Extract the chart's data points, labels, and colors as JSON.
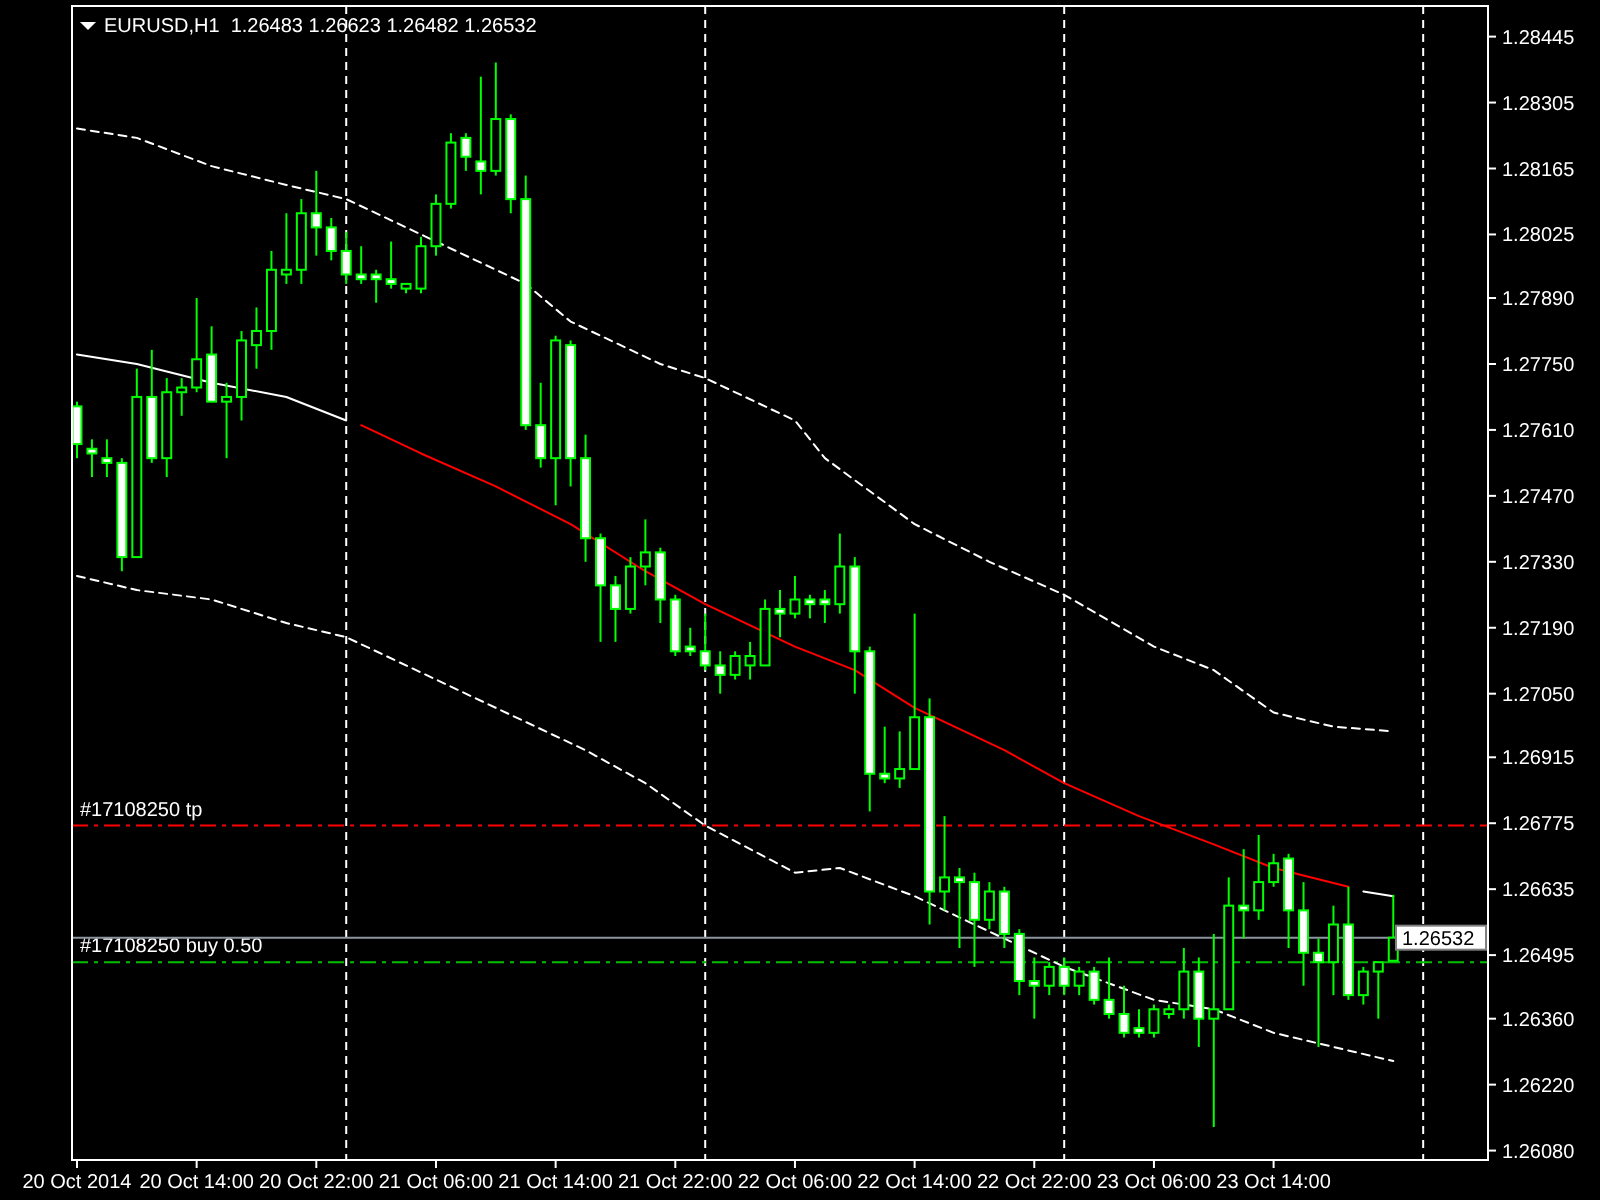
{
  "chart_data": {
    "type": "candlestick",
    "title": "EURUSD,H1  1.26483 1.26623 1.26482 1.26532",
    "xlim": [
      "2014-10-20T05:40",
      "2014-10-24T04:20"
    ],
    "xticks": [
      {
        "value": "2014-10-20T06:00",
        "label": "20 Oct 2014"
      },
      {
        "value": "2014-10-20T14:00",
        "label": "20 Oct 14:00"
      },
      {
        "value": "2014-10-20T22:00",
        "label": "20 Oct 22:00"
      },
      {
        "value": "2014-10-21T06:00",
        "label": "21 Oct 06:00"
      },
      {
        "value": "2014-10-21T14:00",
        "label": "21 Oct 14:00"
      },
      {
        "value": "2014-10-21T22:00",
        "label": "21 Oct 22:00"
      },
      {
        "value": "2014-10-22T06:00",
        "label": "22 Oct 06:00"
      },
      {
        "value": "2014-10-22T14:00",
        "label": "22 Oct 14:00"
      },
      {
        "value": "2014-10-22T22:00",
        "label": "22 Oct 22:00"
      },
      {
        "value": "2014-10-23T06:00",
        "label": "23 Oct 06:00"
      },
      {
        "value": "2014-10-23T14:00",
        "label": "23 Oct 14:00"
      }
    ],
    "ylim": [
      1.2606,
      1.2851
    ],
    "yticks": [
      1.28445,
      1.28305,
      1.28165,
      1.28025,
      {
        "value": 1.2789,
        "label": "1.27890"
      },
      {
        "value": 1.2775,
        "label": "1.27750"
      },
      {
        "value": 1.2761,
        "label": "1.27610"
      },
      {
        "value": 1.2747,
        "label": "1.27470"
      },
      {
        "value": 1.2733,
        "label": "1.27330"
      },
      {
        "value": 1.2719,
        "label": "1.27190"
      },
      {
        "value": 1.2705,
        "label": "1.27050"
      },
      1.26915,
      1.26775,
      1.26635,
      1.26495,
      {
        "value": 1.2636,
        "label": "1.26360"
      },
      {
        "value": 1.2622,
        "label": "1.26220"
      },
      {
        "value": 1.2608,
        "label": "1.26080"
      }
    ],
    "series": [
      {
        "type": "line",
        "color": "#ffffff",
        "line_style": "solid",
        "x": [
          "2014-10-20T06:00",
          "2014-10-20T10:00",
          "2014-10-20T15:00",
          "2014-10-20T20:00",
          "2014-10-21T00:00",
          "2014-10-22T10:00",
          "2014-10-23T20:00",
          "2014-10-23T22:00"
        ],
        "values": [
          1.2777,
          1.2775,
          1.2771,
          1.2768,
          1.2763,
          null,
          1.2663,
          1.2662
        ]
      },
      {
        "type": "line",
        "color": "#ff0000",
        "line_style": "solid",
        "x": [
          "2014-10-21T01:00",
          "2014-10-21T05:00",
          "2014-10-21T10:00",
          "2014-10-21T15:00",
          "2014-10-21T20:00",
          "2014-10-22T00:00",
          "2014-10-22T06:00",
          "2014-10-22T10:00",
          "2014-10-22T14:00",
          "2014-10-22T20:00",
          "2014-10-23T00:00",
          "2014-10-23T05:00",
          "2014-10-23T10:00",
          "2014-10-23T14:00",
          "2014-10-23T19:00"
        ],
        "values": [
          1.2762,
          1.2756,
          1.2749,
          1.2741,
          1.2731,
          1.2724,
          1.2715,
          1.271,
          1.2702,
          1.2693,
          1.2686,
          1.2679,
          1.2673,
          1.2668,
          1.2664
        ]
      },
      {
        "type": "line",
        "color": "#ffffff",
        "line_style": "dashed",
        "x": [
          "2014-10-20T06:00",
          "2014-10-20T10:00",
          "2014-10-20T15:00",
          "2014-10-20T20:00",
          "2014-10-21T00:00",
          "2014-10-21T06:00",
          "2014-10-21T12:00",
          "2014-10-21T15:00",
          "2014-10-21T21:00",
          "2014-10-22T00:00",
          "2014-10-22T06:00",
          "2014-10-22T08:00",
          "2014-10-22T14:00",
          "2014-10-22T19:00",
          "2014-10-23T00:00",
          "2014-10-23T06:00",
          "2014-10-23T10:00",
          "2014-10-23T14:00",
          "2014-10-23T18:00",
          "2014-10-23T22:00"
        ],
        "values": [
          1.2825,
          1.2823,
          1.2817,
          1.2813,
          1.281,
          1.2801,
          1.2792,
          1.2784,
          1.2775,
          1.2772,
          1.2763,
          1.2755,
          1.2741,
          1.2733,
          1.2726,
          1.2715,
          1.271,
          1.2701,
          1.2698,
          1.2697
        ]
      },
      {
        "type": "line",
        "color": "#ffffff",
        "line_style": "dashed",
        "x": [
          "2014-10-20T06:00",
          "2014-10-20T10:00",
          "2014-10-20T15:00",
          "2014-10-20T20:00",
          "2014-10-21T00:00",
          "2014-10-21T06:00",
          "2014-10-21T10:00",
          "2014-10-21T16:00",
          "2014-10-21T20:00",
          "2014-10-22T00:00",
          "2014-10-22T06:00",
          "2014-10-22T09:00",
          "2014-10-22T14:00",
          "2014-10-22T20:00",
          "2014-10-23T00:00",
          "2014-10-23T06:00",
          "2014-10-23T10:00",
          "2014-10-23T14:00",
          "2014-10-23T18:00",
          "2014-10-23T22:00"
        ],
        "values": [
          1.273,
          1.2727,
          1.2725,
          1.272,
          1.2717,
          1.2708,
          1.2702,
          1.2693,
          1.2686,
          1.2677,
          1.2667,
          1.2668,
          1.2662,
          1.2653,
          1.2647,
          1.264,
          1.2638,
          1.2633,
          1.263,
          1.2627
        ]
      },
      {
        "color": "#00ff00",
        "x": [
          "2014-10-20T06:00",
          "2014-10-20T07:00",
          "2014-10-20T08:00",
          "2014-10-20T09:00",
          "2014-10-20T10:00",
          "2014-10-20T11:00",
          "2014-10-20T12:00",
          "2014-10-20T13:00",
          "2014-10-20T14:00",
          "2014-10-20T15:00",
          "2014-10-20T16:00",
          "2014-10-20T17:00",
          "2014-10-20T18:00",
          "2014-10-20T19:00",
          "2014-10-20T20:00",
          "2014-10-20T21:00",
          "2014-10-20T22:00",
          "2014-10-20T23:00",
          "2014-10-21T00:00",
          "2014-10-21T01:00",
          "2014-10-21T02:00",
          "2014-10-21T03:00",
          "2014-10-21T04:00",
          "2014-10-21T05:00",
          "2014-10-21T06:00",
          "2014-10-21T07:00",
          "2014-10-21T08:00",
          "2014-10-21T09:00",
          "2014-10-21T10:00",
          "2014-10-21T11:00",
          "2014-10-21T12:00",
          "2014-10-21T13:00",
          "2014-10-21T14:00",
          "2014-10-21T15:00",
          "2014-10-21T16:00",
          "2014-10-21T17:00",
          "2014-10-21T18:00",
          "2014-10-21T19:00",
          "2014-10-21T20:00",
          "2014-10-21T21:00",
          "2014-10-21T22:00",
          "2014-10-21T23:00",
          "2014-10-22T00:00",
          "2014-10-22T01:00",
          "2014-10-22T02:00",
          "2014-10-22T03:00",
          "2014-10-22T04:00",
          "2014-10-22T05:00",
          "2014-10-22T06:00",
          "2014-10-22T07:00",
          "2014-10-22T08:00",
          "2014-10-22T09:00",
          "2014-10-22T10:00",
          "2014-10-22T11:00",
          "2014-10-22T12:00",
          "2014-10-22T13:00",
          "2014-10-22T14:00",
          "2014-10-22T15:00",
          "2014-10-22T16:00",
          "2014-10-22T17:00",
          "2014-10-22T18:00",
          "2014-10-22T19:00",
          "2014-10-22T20:00",
          "2014-10-22T21:00",
          "2014-10-22T22:00",
          "2014-10-22T23:00",
          "2014-10-23T00:00",
          "2014-10-23T01:00",
          "2014-10-23T02:00",
          "2014-10-23T03:00",
          "2014-10-23T04:00",
          "2014-10-23T05:00",
          "2014-10-23T06:00",
          "2014-10-23T07:00",
          "2014-10-23T08:00",
          "2014-10-23T09:00",
          "2014-10-23T10:00",
          "2014-10-23T11:00",
          "2014-10-23T12:00",
          "2014-10-23T13:00",
          "2014-10-23T14:00",
          "2014-10-23T15:00",
          "2014-10-23T16:00",
          "2014-10-23T17:00",
          "2014-10-23T18:00",
          "2014-10-23T19:00",
          "2014-10-23T20:00",
          "2014-10-23T21:00",
          "2014-10-23T22:00"
        ],
        "ohlc": [
          [
            1.2766,
            1.2767,
            1.2755,
            1.2758
          ],
          [
            1.2757,
            1.2759,
            1.2751,
            1.2756
          ],
          [
            1.2755,
            1.2759,
            1.2751,
            1.2754
          ],
          [
            1.2754,
            1.2755,
            1.2731,
            1.2734
          ],
          [
            1.2734,
            1.2774,
            1.2734,
            1.2768
          ],
          [
            1.2768,
            1.2778,
            1.2754,
            1.2755
          ],
          [
            1.2755,
            1.2772,
            1.2751,
            1.2769
          ],
          [
            1.2769,
            1.2772,
            1.2764,
            1.277
          ],
          [
            1.277,
            1.2789,
            1.2769,
            1.2776
          ],
          [
            1.2777,
            1.2783,
            1.2767,
            1.2767
          ],
          [
            1.2767,
            1.2771,
            1.2755,
            1.2768
          ],
          [
            1.2768,
            1.2782,
            1.2763,
            1.278
          ],
          [
            1.2779,
            1.2787,
            1.2774,
            1.2782
          ],
          [
            1.2782,
            1.2799,
            1.2778,
            1.2795
          ],
          [
            1.2794,
            1.2807,
            1.2792,
            1.2795
          ],
          [
            1.2795,
            1.281,
            1.2792,
            1.2807
          ],
          [
            1.2807,
            1.2816,
            1.2798,
            1.2804
          ],
          [
            1.2804,
            1.2806,
            1.2797,
            1.2799
          ],
          [
            1.2799,
            1.2803,
            1.2792,
            1.2794
          ],
          [
            1.2794,
            1.28,
            1.2792,
            1.2793
          ],
          [
            1.2794,
            1.2795,
            1.2788,
            1.2793
          ],
          [
            1.2793,
            1.2801,
            1.2791,
            1.2792
          ],
          [
            1.2791,
            1.2792,
            1.279,
            1.2792
          ],
          [
            1.2791,
            1.2802,
            1.279,
            1.28
          ],
          [
            1.28,
            1.2811,
            1.2798,
            1.2809
          ],
          [
            1.2809,
            1.2824,
            1.2808,
            1.2822
          ],
          [
            1.2823,
            1.2824,
            1.2816,
            1.2819
          ],
          [
            1.2818,
            1.2836,
            1.2811,
            1.2816
          ],
          [
            1.2816,
            1.2839,
            1.2815,
            1.2827
          ],
          [
            1.2827,
            1.2828,
            1.2807,
            1.281
          ],
          [
            1.281,
            1.2815,
            1.2761,
            1.2762
          ],
          [
            1.2762,
            1.2771,
            1.2753,
            1.2755
          ],
          [
            1.2755,
            1.2781,
            1.2745,
            1.278
          ],
          [
            1.2779,
            1.278,
            1.2749,
            1.2755
          ],
          [
            1.2755,
            1.276,
            1.2733,
            1.2738
          ],
          [
            1.2738,
            1.2739,
            1.2716,
            1.2728
          ],
          [
            1.2728,
            1.273,
            1.2716,
            1.2723
          ],
          [
            1.2723,
            1.2734,
            1.2722,
            1.2732
          ],
          [
            1.2732,
            1.2742,
            1.2728,
            1.2735
          ],
          [
            1.2735,
            1.2736,
            1.272,
            1.2725
          ],
          [
            1.2725,
            1.2726,
            1.2713,
            1.2714
          ],
          [
            1.2715,
            1.2719,
            1.2713,
            1.2714
          ],
          [
            1.2714,
            1.2722,
            1.271,
            1.2711
          ],
          [
            1.2711,
            1.2714,
            1.2705,
            1.2709
          ],
          [
            1.2709,
            1.2714,
            1.2708,
            1.2713
          ],
          [
            1.2711,
            1.2716,
            1.2708,
            1.2713
          ],
          [
            1.2711,
            1.2725,
            1.2711,
            1.2723
          ],
          [
            1.2723,
            1.2727,
            1.2717,
            1.2722
          ],
          [
            1.2722,
            1.273,
            1.2721,
            1.2725
          ],
          [
            1.2725,
            1.2726,
            1.2721,
            1.2724
          ],
          [
            1.2725,
            1.2727,
            1.272,
            1.2724
          ],
          [
            1.2724,
            1.2739,
            1.2722,
            1.2732
          ],
          [
            1.2732,
            1.2734,
            1.2705,
            1.2714
          ],
          [
            1.2714,
            1.2715,
            1.268,
            1.2688
          ],
          [
            1.2688,
            1.2698,
            1.2686,
            1.2687
          ],
          [
            1.2687,
            1.2697,
            1.2685,
            1.2689
          ],
          [
            1.2689,
            1.2722,
            1.2689,
            1.27
          ],
          [
            1.27,
            1.2704,
            1.2656,
            1.2663
          ],
          [
            1.2663,
            1.2679,
            1.2659,
            1.2666
          ],
          [
            1.2666,
            1.2668,
            1.2651,
            1.2665
          ],
          [
            1.2665,
            1.2667,
            1.2647,
            1.2657
          ],
          [
            1.2657,
            1.2665,
            1.2655,
            1.2663
          ],
          [
            1.2663,
            1.2664,
            1.2651,
            1.2654
          ],
          [
            1.2654,
            1.2655,
            1.2641,
            1.2644
          ],
          [
            1.2644,
            1.2649,
            1.2636,
            1.2643
          ],
          [
            1.2643,
            1.2648,
            1.2641,
            1.2647
          ],
          [
            1.2647,
            1.2649,
            1.2641,
            1.2643
          ],
          [
            1.2643,
            1.2647,
            1.2641,
            1.2646
          ],
          [
            1.2646,
            1.2647,
            1.2639,
            1.264
          ],
          [
            1.264,
            1.2649,
            1.2636,
            1.2637
          ],
          [
            1.2637,
            1.2643,
            1.2632,
            1.2633
          ],
          [
            1.2634,
            1.2638,
            1.2632,
            1.2633
          ],
          [
            1.2633,
            1.2639,
            1.2632,
            1.2638
          ],
          [
            1.2637,
            1.2639,
            1.2636,
            1.2638
          ],
          [
            1.2638,
            1.2651,
            1.2636,
            1.2646
          ],
          [
            1.2646,
            1.2649,
            1.263,
            1.2636
          ],
          [
            1.2636,
            1.2654,
            1.2613,
            1.2638
          ],
          [
            1.2638,
            1.2666,
            1.2638,
            1.266
          ],
          [
            1.266,
            1.2672,
            1.2653,
            1.2659
          ],
          [
            1.2659,
            1.2675,
            1.2657,
            1.2665
          ],
          [
            1.2665,
            1.2671,
            1.2664,
            1.2669
          ],
          [
            1.267,
            1.2671,
            1.2651,
            1.2659
          ],
          [
            1.2659,
            1.2665,
            1.2643,
            1.265
          ],
          [
            1.265,
            1.2653,
            1.263,
            1.2648
          ],
          [
            1.2648,
            1.266,
            1.2641,
            1.2656
          ],
          [
            1.2656,
            1.2664,
            1.264,
            1.2641
          ],
          [
            1.2641,
            1.2647,
            1.2639,
            1.2646
          ],
          [
            1.2646,
            1.2648,
            1.2636,
            1.2648
          ],
          [
            1.26483,
            1.26623,
            1.26482,
            1.26532
          ]
        ]
      }
    ],
    "ref_lines": [
      {
        "axis": "x",
        "value": "2014-10-21T00:00",
        "color": "#ffffff",
        "line_style": "dashed"
      },
      {
        "axis": "x",
        "value": "2014-10-22T00:00",
        "color": "#ffffff",
        "line_style": "dashed"
      },
      {
        "axis": "x",
        "value": "2014-10-23T00:00",
        "color": "#ffffff",
        "line_style": "dashed"
      },
      {
        "axis": "x",
        "value": "2014-10-24T00:00",
        "color": "#ffffff",
        "line_style": "dashed"
      },
      {
        "axis": "y",
        "value": 1.2677,
        "label": "#17108250 tp",
        "color": "#ff0000",
        "line_style": "dashed"
      },
      {
        "axis": "y",
        "value": 1.2648,
        "label": "#17108250 buy 0.50",
        "color": "#00c000",
        "line_style": "dashed"
      },
      {
        "axis": "y",
        "value": 1.26532,
        "label": "1.26532",
        "color": "#8c96a0",
        "line_style": "solid"
      }
    ]
  }
}
